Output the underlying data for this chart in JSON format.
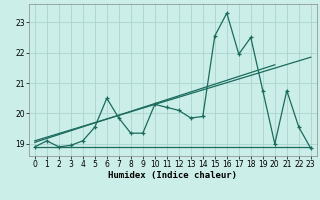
{
  "xlabel": "Humidex (Indice chaleur)",
  "background_color": "#cceee8",
  "grid_color": "#aad4ce",
  "line_color": "#1a6b5e",
  "x_data": [
    0,
    1,
    2,
    3,
    4,
    5,
    6,
    7,
    8,
    9,
    10,
    11,
    12,
    13,
    14,
    15,
    16,
    17,
    18,
    19,
    20,
    21,
    22,
    23
  ],
  "y_main": [
    18.9,
    19.1,
    18.9,
    18.95,
    19.1,
    19.55,
    20.5,
    19.85,
    19.35,
    19.35,
    20.3,
    20.2,
    20.1,
    19.85,
    19.9,
    22.55,
    23.3,
    21.95,
    22.5,
    20.75,
    19.0,
    20.75,
    19.55,
    18.85
  ],
  "ylim": [
    18.6,
    23.6
  ],
  "xlim": [
    -0.5,
    23.5
  ],
  "yticks": [
    19,
    20,
    21,
    22,
    23
  ],
  "xticks": [
    0,
    1,
    2,
    3,
    4,
    5,
    6,
    7,
    8,
    9,
    10,
    11,
    12,
    13,
    14,
    15,
    16,
    17,
    18,
    19,
    20,
    21,
    22,
    23
  ],
  "trend1_start_x": 0,
  "trend1_start_y": 18.9,
  "trend1_end_x": 23,
  "trend1_end_y": 18.9,
  "trend2_start_x": 0,
  "trend2_start_y": 19.05,
  "trend2_end_x": 20,
  "trend2_end_y": 21.6,
  "trend3_start_x": 0,
  "trend3_start_y": 19.1,
  "trend3_end_x": 23,
  "trend3_end_y": 21.85
}
